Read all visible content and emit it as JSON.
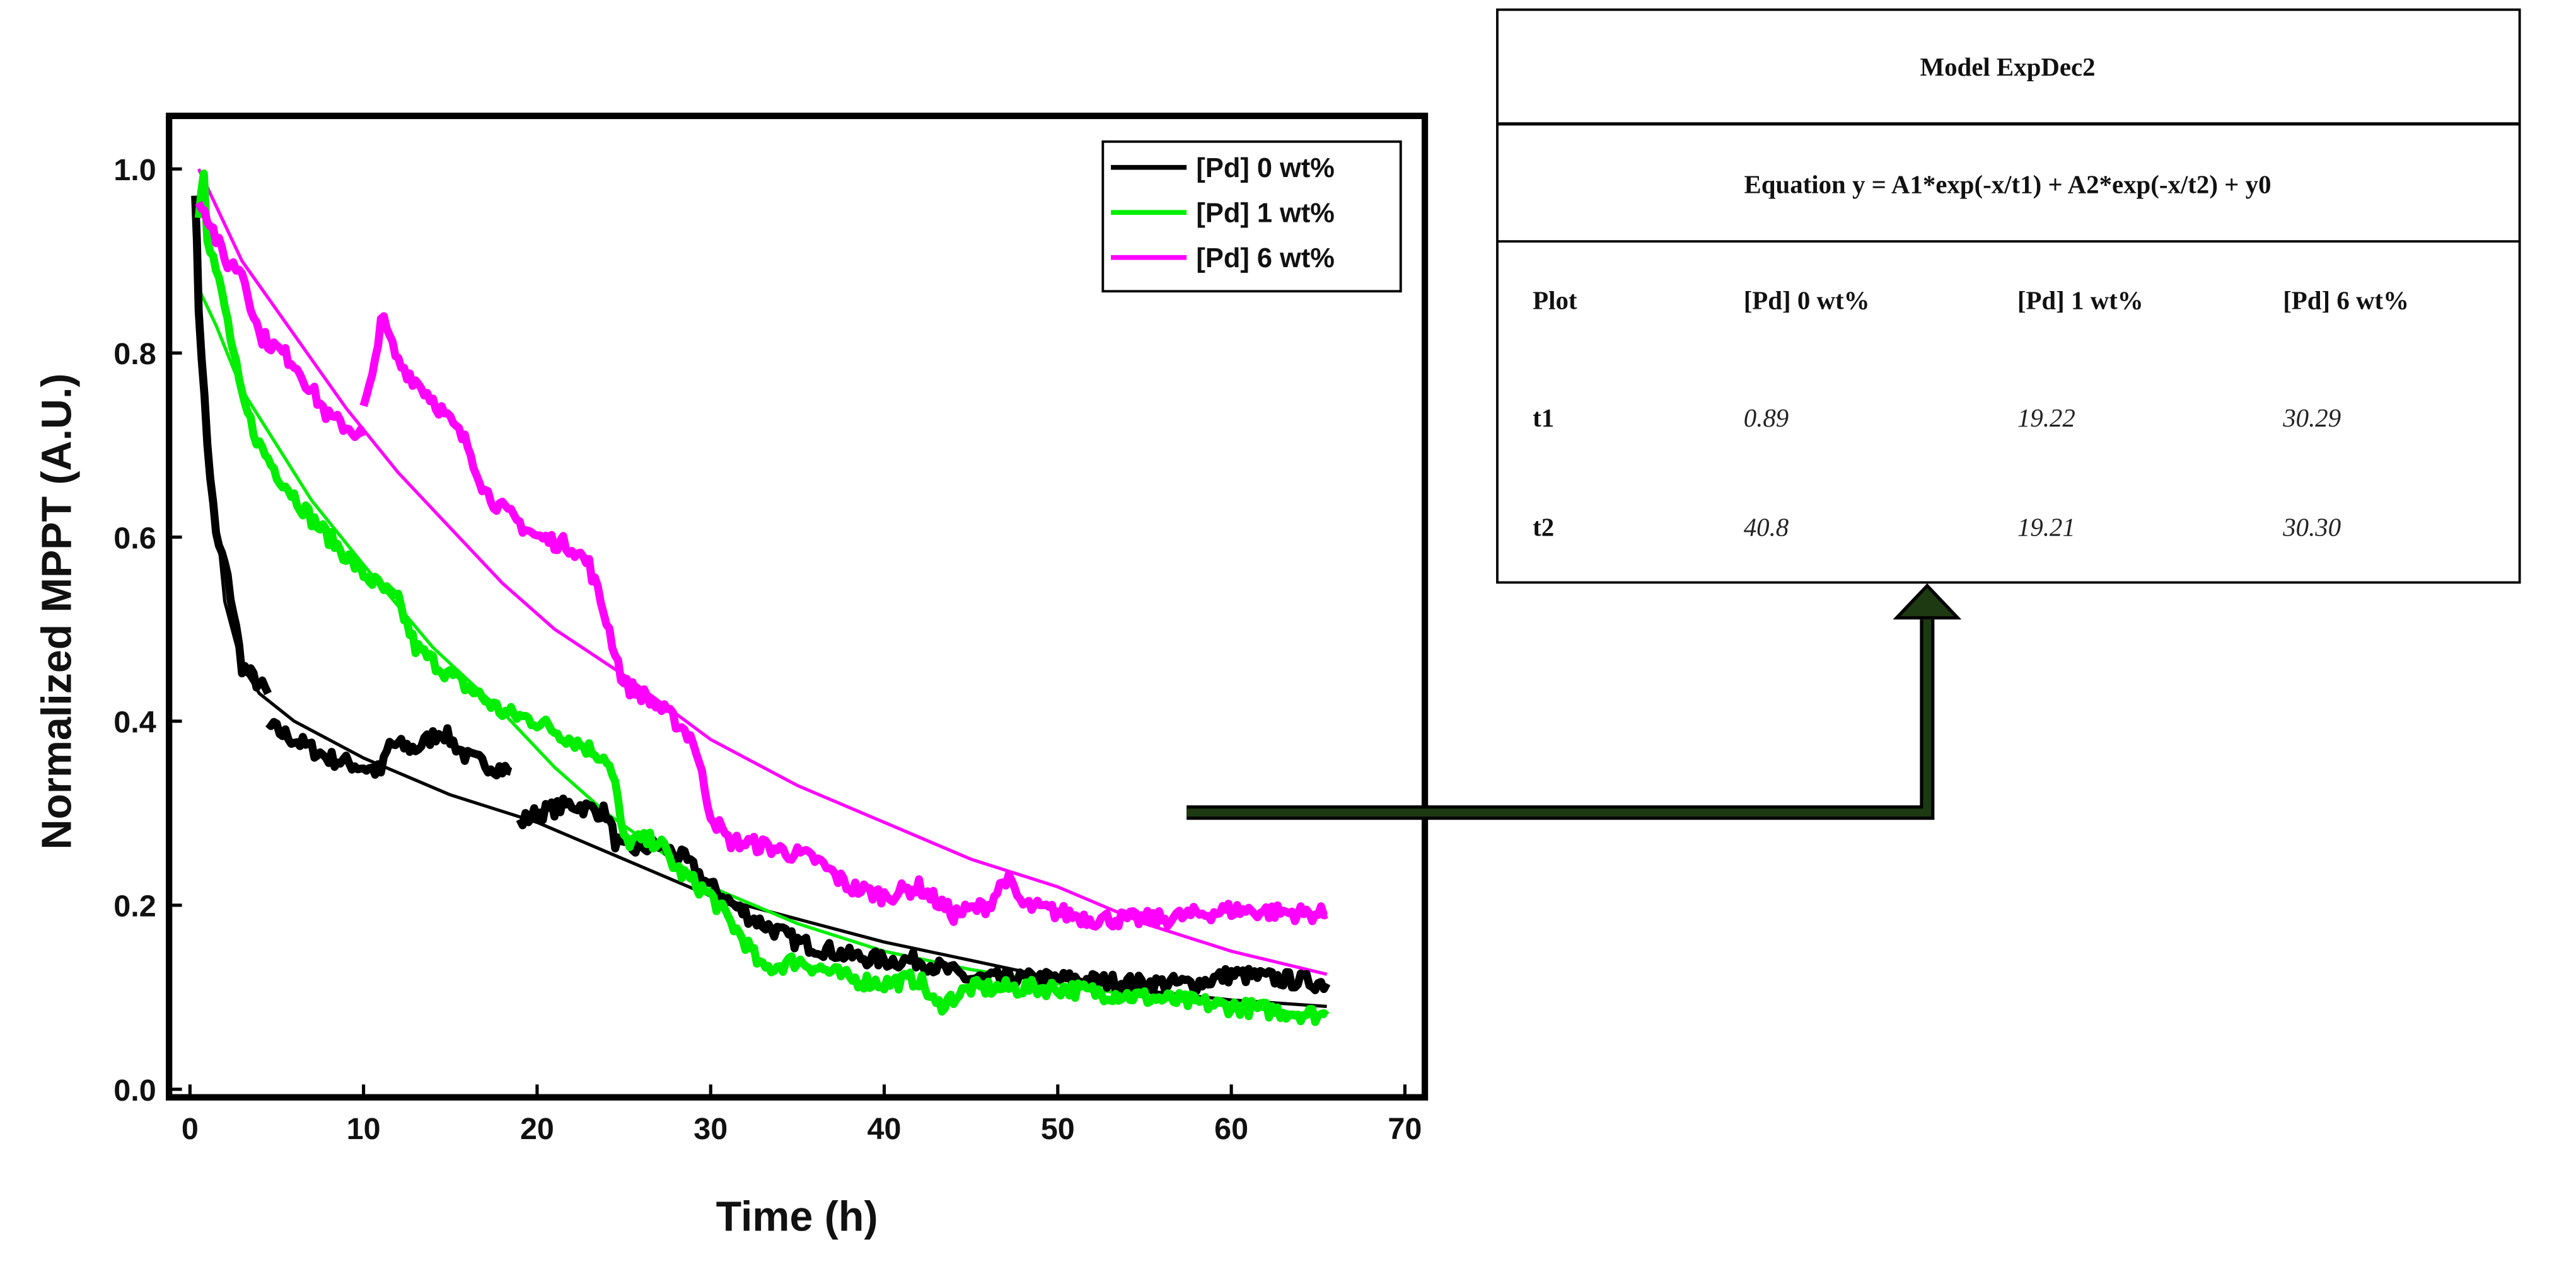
{
  "chart_data": {
    "type": "line",
    "xlabel": "Time (h)",
    "ylabel": "Normalized MPPT (A.U.)",
    "xlim": [
      0,
      70
    ],
    "ylim": [
      0,
      1.0
    ],
    "xticks": [
      "0",
      "10",
      "20",
      "30",
      "40",
      "50",
      "60",
      "70"
    ],
    "yticks": [
      "0.0",
      "0.2",
      "0.4",
      "0.6",
      "0.8",
      "1.0"
    ],
    "legend_position": "top-right",
    "series": [
      {
        "name": "[Pd] 0 wt%",
        "color": "#000000",
        "segments": [
          [
            [
              0.3,
              0.98
            ],
            [
              0.5,
              0.85
            ],
            [
              1,
              0.7
            ],
            [
              1.5,
              0.6
            ],
            [
              2,
              0.57
            ],
            [
              2.5,
              0.52
            ],
            [
              3,
              0.46
            ],
            [
              4,
              0.44
            ],
            [
              4.5,
              0.43
            ]
          ],
          [
            [
              4.5,
              0.395
            ],
            [
              6,
              0.38
            ],
            [
              8,
              0.36
            ],
            [
              10,
              0.35
            ],
            [
              11,
              0.345
            ],
            [
              11.5,
              0.375
            ],
            [
              13,
              0.37
            ],
            [
              14.5,
              0.39
            ],
            [
              16,
              0.36
            ],
            [
              18.5,
              0.345
            ]
          ],
          [
            [
              19,
              0.29
            ],
            [
              20,
              0.3
            ],
            [
              22,
              0.31
            ],
            [
              24,
              0.3
            ],
            [
              24.5,
              0.27
            ],
            [
              25,
              0.26
            ],
            [
              27,
              0.265
            ],
            [
              28.5,
              0.25
            ],
            [
              30,
              0.22
            ],
            [
              32,
              0.19
            ],
            [
              35,
              0.16
            ],
            [
              38,
              0.145
            ],
            [
              40,
              0.14
            ],
            [
              42,
              0.14
            ],
            [
              45,
              0.12
            ],
            [
              50,
              0.12
            ],
            [
              55,
              0.115
            ],
            [
              58,
              0.115
            ],
            [
              60,
              0.125
            ],
            [
              65.5,
              0.115
            ]
          ]
        ],
        "fit": [
          [
            0.5,
            0.88
          ],
          [
            1,
            0.72
          ],
          [
            2,
            0.53
          ],
          [
            3,
            0.46
          ],
          [
            4,
            0.43
          ],
          [
            6,
            0.4
          ],
          [
            10,
            0.36
          ],
          [
            15,
            0.32
          ],
          [
            20,
            0.29
          ],
          [
            25,
            0.25
          ],
          [
            30,
            0.21
          ],
          [
            35,
            0.185
          ],
          [
            40,
            0.16
          ],
          [
            45,
            0.14
          ],
          [
            50,
            0.12
          ],
          [
            55,
            0.107
          ],
          [
            60,
            0.097
          ],
          [
            65.5,
            0.09
          ]
        ]
      },
      {
        "name": "[Pd] 1 wt%",
        "color": "#00ee00",
        "segments": [
          [
            [
              0.5,
              0.95
            ],
            [
              0.8,
              1.0
            ],
            [
              1,
              0.93
            ],
            [
              2,
              0.85
            ],
            [
              3,
              0.75
            ],
            [
              4,
              0.7
            ],
            [
              5,
              0.67
            ],
            [
              7,
              0.62
            ],
            [
              9,
              0.58
            ],
            [
              10,
              0.56
            ],
            [
              12,
              0.53
            ],
            [
              13,
              0.48
            ],
            [
              15,
              0.45
            ],
            [
              18,
              0.41
            ],
            [
              20,
              0.4
            ],
            [
              22,
              0.38
            ],
            [
              24,
              0.36
            ],
            [
              24.5,
              0.33
            ],
            [
              25,
              0.27
            ],
            [
              27,
              0.27
            ],
            [
              28,
              0.24
            ],
            [
              30,
              0.21
            ],
            [
              32,
              0.16
            ],
            [
              33,
              0.13
            ],
            [
              35,
              0.14
            ],
            [
              38,
              0.12
            ],
            [
              40,
              0.115
            ],
            [
              42,
              0.12
            ],
            [
              43,
              0.09
            ],
            [
              45,
              0.11
            ],
            [
              50,
              0.11
            ],
            [
              55,
              0.1
            ],
            [
              60,
              0.09
            ],
            [
              65.5,
              0.08
            ]
          ]
        ],
        "fit": [
          [
            0.5,
            0.87
          ],
          [
            1.5,
            0.83
          ],
          [
            3,
            0.76
          ],
          [
            5,
            0.7
          ],
          [
            7,
            0.64
          ],
          [
            10,
            0.57
          ],
          [
            14,
            0.48
          ],
          [
            18,
            0.41
          ],
          [
            21,
            0.35
          ],
          [
            24,
            0.3
          ],
          [
            27,
            0.26
          ],
          [
            30,
            0.22
          ],
          [
            35,
            0.18
          ],
          [
            40,
            0.15
          ],
          [
            45,
            0.13
          ],
          [
            50,
            0.115
          ],
          [
            55,
            0.1
          ],
          [
            60,
            0.09
          ],
          [
            65.5,
            0.08
          ]
        ]
      },
      {
        "name": "[Pd] 6 wt%",
        "color": "#ff00ff",
        "segments": [
          [
            [
              0.5,
              0.97
            ],
            [
              1,
              0.95
            ],
            [
              2,
              0.9
            ],
            [
              3,
              0.89
            ],
            [
              4,
              0.82
            ],
            [
              6,
              0.79
            ],
            [
              8,
              0.73
            ],
            [
              10,
              0.71
            ]
          ],
          [
            [
              10,
              0.74
            ],
            [
              10.5,
              0.77
            ],
            [
              11,
              0.84
            ],
            [
              12,
              0.79
            ],
            [
              14,
              0.75
            ],
            [
              16,
              0.7
            ],
            [
              17,
              0.65
            ],
            [
              18,
              0.63
            ],
            [
              20,
              0.6
            ],
            [
              22,
              0.59
            ],
            [
              23,
              0.57
            ],
            [
              24,
              0.51
            ],
            [
              25,
              0.44
            ],
            [
              26,
              0.43
            ],
            [
              28,
              0.4
            ],
            [
              29,
              0.38
            ],
            [
              30,
              0.3
            ],
            [
              31,
              0.27
            ],
            [
              33,
              0.265
            ],
            [
              36,
              0.25
            ],
            [
              38,
              0.22
            ],
            [
              40,
              0.21
            ],
            [
              42,
              0.22
            ],
            [
              44,
              0.19
            ],
            [
              46,
              0.2
            ],
            [
              47,
              0.23
            ],
            [
              48,
              0.2
            ],
            [
              52,
              0.185
            ],
            [
              56,
              0.185
            ],
            [
              60,
              0.195
            ],
            [
              65.5,
              0.19
            ]
          ]
        ],
        "fit": [
          [
            0.5,
            1.0
          ],
          [
            3,
            0.9
          ],
          [
            6,
            0.82
          ],
          [
            9,
            0.74
          ],
          [
            12,
            0.67
          ],
          [
            15,
            0.61
          ],
          [
            18,
            0.55
          ],
          [
            21,
            0.5
          ],
          [
            25,
            0.45
          ],
          [
            30,
            0.38
          ],
          [
            35,
            0.33
          ],
          [
            40,
            0.29
          ],
          [
            45,
            0.25
          ],
          [
            50,
            0.22
          ],
          [
            55,
            0.18
          ],
          [
            60,
            0.15
          ],
          [
            65.5,
            0.125
          ]
        ]
      }
    ]
  },
  "table": {
    "title": "Model ExpDec2",
    "equation": "Equation y = A1*exp(-x/t1) + A2*exp(-x/t2) + y0",
    "headers": [
      "Plot",
      "[Pd] 0 wt%",
      "[Pd] 1 wt%",
      "[Pd] 6 wt%"
    ],
    "rows": [
      [
        "t1",
        "0.89",
        "19.22",
        "30.29"
      ],
      [
        "t2",
        "40.8",
        "19.21",
        "30.30"
      ]
    ]
  },
  "colors": {
    "arrow": "#1e3a12"
  }
}
